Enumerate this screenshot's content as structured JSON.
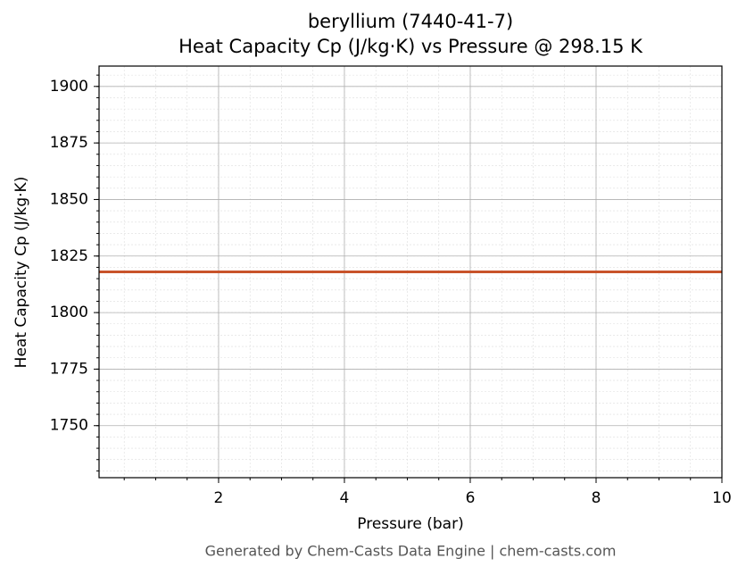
{
  "chart_data": {
    "type": "line",
    "title": "beryllium (7440-41-7)",
    "subtitle": "Heat Capacity Cp (J/kg·K) vs Pressure @ 298.15 K",
    "x_label": "Pressure (bar)",
    "y_label": "Heat Capacity Cp (J/kg·K)",
    "footer": "Generated by Chem-Casts Data Engine | chem-casts.com",
    "x": [
      0.1,
      10
    ],
    "series": [
      {
        "name": "Cp",
        "color": "#c8532a",
        "values": [
          1818,
          1818
        ]
      }
    ],
    "xlim": [
      0.1,
      10
    ],
    "xticks": [
      2,
      4,
      6,
      8,
      10
    ],
    "ylim": [
      1727,
      1909
    ],
    "yticks": [
      1750,
      1775,
      1800,
      1825,
      1850,
      1875,
      1900
    ],
    "grid": true,
    "minor_grid": true
  }
}
